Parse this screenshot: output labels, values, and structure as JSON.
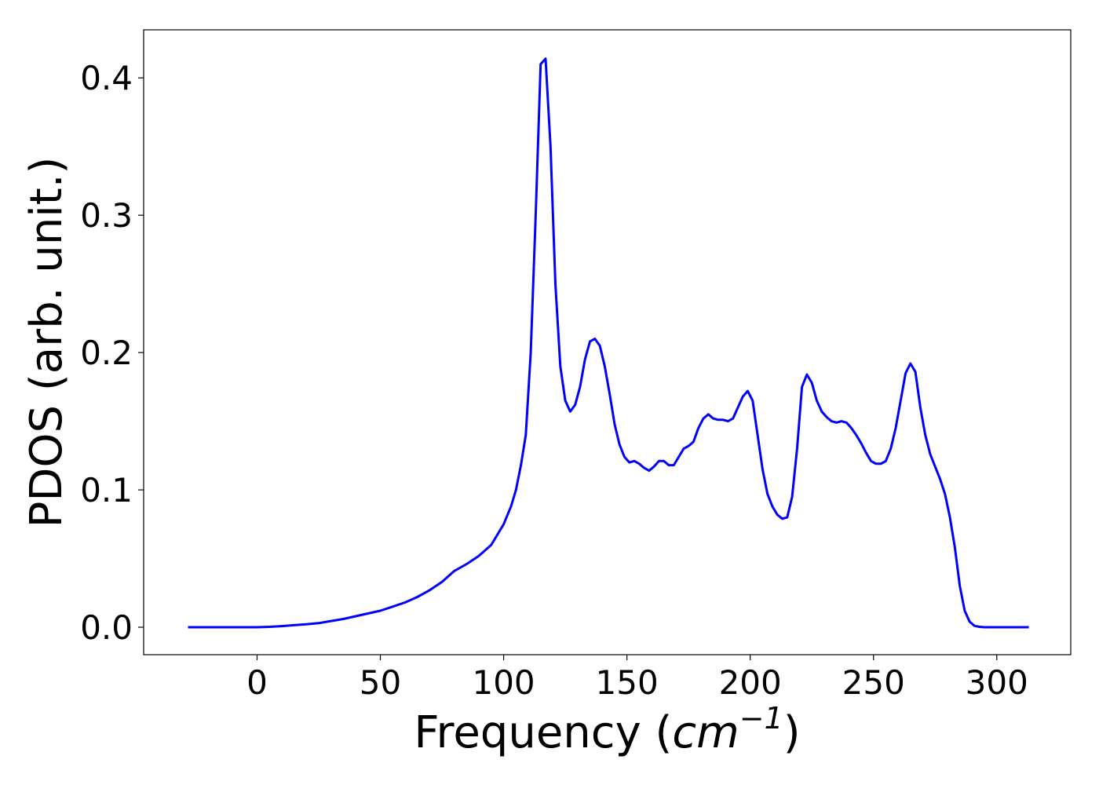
{
  "chart_data": {
    "type": "line",
    "title": "",
    "xlabel": "Frequency",
    "xlabel_unit": "cm",
    "xlabel_unit_exponent": "−1",
    "ylabel": "PDOS (arb. unit.)",
    "xlim": [
      -46,
      330
    ],
    "ylim": [
      -0.02,
      0.435
    ],
    "xticks": [
      0,
      50,
      100,
      150,
      200,
      250,
      300
    ],
    "xtick_labels": [
      "0",
      "50",
      "100",
      "150",
      "200",
      "250",
      "300"
    ],
    "yticks": [
      0.0,
      0.1,
      0.2,
      0.3,
      0.4
    ],
    "ytick_labels": [
      "0.0",
      "0.1",
      "0.2",
      "0.3",
      "0.4"
    ],
    "grid": false,
    "legend": "none",
    "series": [
      {
        "color": "#0000ff",
        "x": [
          -28,
          0,
          5,
          10,
          15,
          20,
          25,
          30,
          35,
          40,
          45,
          50,
          55,
          60,
          65,
          70,
          75,
          80,
          85,
          90,
          95,
          100,
          103,
          105,
          107,
          109,
          111,
          113,
          115,
          117,
          119,
          121,
          123,
          125,
          127,
          129,
          131,
          133,
          135,
          137,
          139,
          141,
          143,
          145,
          147,
          149,
          151,
          153,
          155,
          157,
          159,
          161,
          163,
          165,
          167,
          169,
          171,
          173,
          175,
          177,
          179,
          181,
          183,
          185,
          187,
          189,
          191,
          193,
          195,
          197,
          199,
          201,
          203,
          205,
          207,
          209,
          211,
          213,
          215,
          217,
          219,
          221,
          223,
          225,
          227,
          229,
          231,
          233,
          235,
          237,
          239,
          241,
          243,
          245,
          247,
          249,
          251,
          253,
          255,
          257,
          259,
          261,
          263,
          265,
          267,
          269,
          271,
          273,
          275,
          277,
          279,
          281,
          283,
          285,
          287,
          289,
          291,
          293,
          295,
          300,
          313
        ],
        "y": [
          0.0,
          0.0,
          0.0003,
          0.0008,
          0.0015,
          0.0022,
          0.003,
          0.0045,
          0.006,
          0.008,
          0.01,
          0.012,
          0.015,
          0.018,
          0.022,
          0.027,
          0.033,
          0.041,
          0.046,
          0.052,
          0.06,
          0.075,
          0.088,
          0.1,
          0.118,
          0.14,
          0.2,
          0.3,
          0.41,
          0.414,
          0.35,
          0.25,
          0.19,
          0.165,
          0.157,
          0.162,
          0.175,
          0.195,
          0.208,
          0.21,
          0.205,
          0.19,
          0.17,
          0.148,
          0.133,
          0.124,
          0.12,
          0.121,
          0.119,
          0.116,
          0.114,
          0.117,
          0.121,
          0.121,
          0.118,
          0.118,
          0.124,
          0.13,
          0.132,
          0.135,
          0.145,
          0.152,
          0.155,
          0.152,
          0.151,
          0.151,
          0.15,
          0.152,
          0.16,
          0.168,
          0.172,
          0.165,
          0.14,
          0.115,
          0.097,
          0.088,
          0.082,
          0.079,
          0.08,
          0.095,
          0.13,
          0.175,
          0.184,
          0.178,
          0.165,
          0.157,
          0.153,
          0.15,
          0.149,
          0.15,
          0.149,
          0.145,
          0.14,
          0.134,
          0.127,
          0.121,
          0.119,
          0.119,
          0.121,
          0.13,
          0.145,
          0.165,
          0.185,
          0.192,
          0.186,
          0.16,
          0.14,
          0.126,
          0.117,
          0.108,
          0.097,
          0.08,
          0.058,
          0.03,
          0.012,
          0.004,
          0.001,
          0.0003,
          0.0,
          0.0,
          0.0
        ]
      }
    ]
  }
}
